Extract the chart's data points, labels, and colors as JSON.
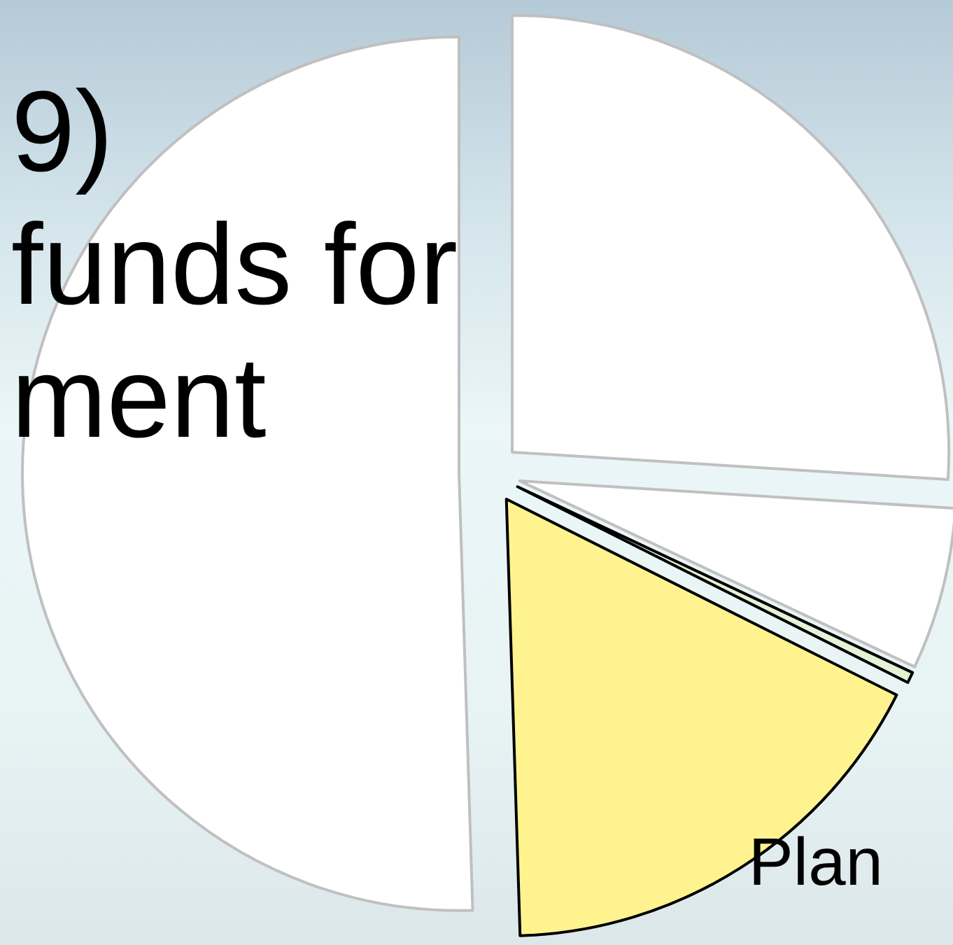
{
  "chart_data": {
    "type": "pie",
    "title": "9)\nfunds for\nment",
    "categories": [
      null,
      null,
      null,
      "Plan",
      null
    ],
    "values": [
      26,
      6,
      0.4,
      17.1,
      50.5
    ],
    "colors": [
      "#ffffff",
      "#ffffff",
      "#e4f2d6",
      "#fff38f",
      "#ffffff"
    ]
  }
}
